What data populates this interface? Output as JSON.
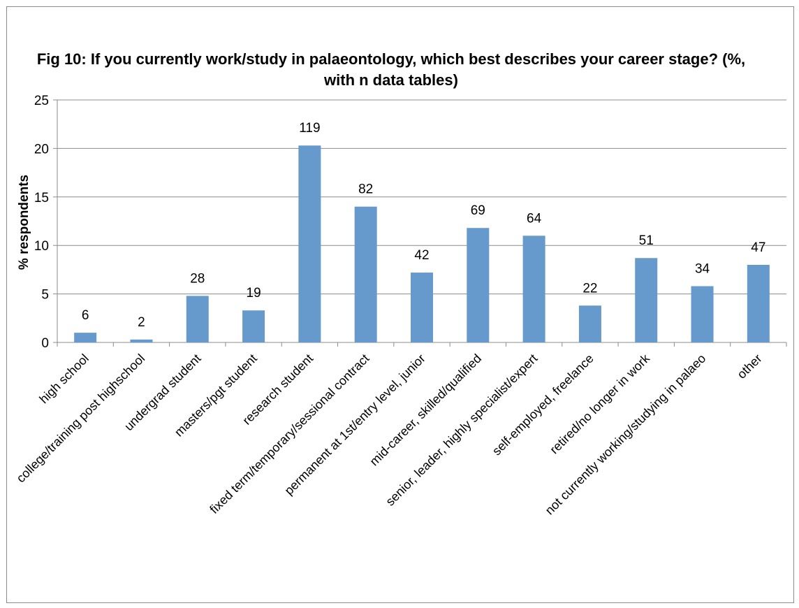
{
  "chart_data": {
    "type": "bar",
    "title": "Fig 10: If you currently work/study in palaeontology, which best describes your career stage? (%, with n data tables)",
    "xlabel": "",
    "ylabel": "% respondents",
    "ylim": [
      0,
      25
    ],
    "yticks": [
      0,
      5,
      10,
      15,
      20,
      25
    ],
    "grid": true,
    "legend": "none",
    "bar_color": "#6699cc",
    "categories": [
      "high school",
      "college/training post highschool",
      "undergrad student",
      "masters/pgt  student",
      "research student",
      "fixed term/temporary/sessional contract",
      "permanent at 1st/entry level, junior",
      "mid-career, skilled/qualified",
      "senior, leader, highly specialist/expert",
      "self-employed, freelance",
      "retired/no longer in work",
      "not currently working/studying in palaeo",
      "other"
    ],
    "values": [
      1.0,
      0.3,
      4.8,
      3.3,
      20.3,
      14.0,
      7.2,
      11.8,
      11.0,
      3.8,
      8.7,
      5.8,
      8.0
    ],
    "data_labels": [
      "6",
      "2",
      "28",
      "19",
      "119",
      "82",
      "42",
      "69",
      "64",
      "22",
      "51",
      "34",
      "47"
    ]
  }
}
